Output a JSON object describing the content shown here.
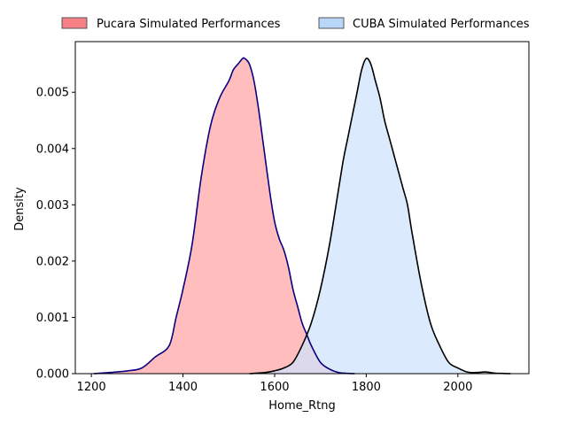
{
  "chart_data": {
    "type": "area",
    "title": "",
    "xlabel": "Home_Rtng",
    "ylabel": "Density",
    "xlim": [
      1165,
      2155
    ],
    "ylim": [
      0,
      0.0059
    ],
    "xticks": [
      1200,
      1400,
      1600,
      1800,
      2000
    ],
    "xtick_labels": [
      "1200",
      "1400",
      "1600",
      "1800",
      "2000"
    ],
    "yticks": [
      0,
      0.001,
      0.002,
      0.003,
      0.004,
      0.005
    ],
    "ytick_labels": [
      "0.000",
      "0.001",
      "0.002",
      "0.003",
      "0.004",
      "0.005"
    ],
    "grid": false,
    "legend_position": "top",
    "series": [
      {
        "name": "Pucara Simulated Performances",
        "fill": "#ff9a9a",
        "legend_fill": "#f77f86",
        "line": "#0c0082",
        "x": [
          1205,
          1240,
          1280,
          1310,
          1340,
          1370,
          1385,
          1400,
          1420,
          1440,
          1460,
          1480,
          1500,
          1510,
          1520,
          1530,
          1535,
          1545,
          1555,
          1565,
          1575,
          1590,
          1600,
          1610,
          1620,
          1630,
          1640,
          1650,
          1660,
          1670,
          1680,
          1700,
          1720,
          1740,
          1760,
          1775
        ],
        "y": [
          0.0,
          2e-05,
          5e-05,
          0.0001,
          0.0003,
          0.0005,
          0.001,
          0.0015,
          0.0023,
          0.0035,
          0.0044,
          0.0049,
          0.0052,
          0.0054,
          0.0055,
          0.0056,
          0.0056,
          0.0055,
          0.0052,
          0.0047,
          0.0041,
          0.0032,
          0.0027,
          0.0024,
          0.0022,
          0.0019,
          0.0015,
          0.0012,
          0.0009,
          0.0007,
          0.0005,
          0.0002,
          8e-05,
          2e-05,
          5e-06,
          0.0
        ]
      },
      {
        "name": "CUBA Simulated Performances",
        "fill": "#cfe3fb",
        "legend_fill": "#b8d6f8",
        "line": "#000000",
        "x": [
          1545,
          1580,
          1600,
          1620,
          1640,
          1660,
          1680,
          1700,
          1720,
          1740,
          1750,
          1760,
          1770,
          1780,
          1790,
          1800,
          1810,
          1820,
          1830,
          1840,
          1850,
          1860,
          1870,
          1880,
          1890,
          1900,
          1920,
          1940,
          1960,
          1980,
          2000,
          2020,
          2040,
          2060,
          2080,
          2100,
          2115
        ],
        "y": [
          0.0,
          2e-05,
          5e-05,
          0.0001,
          0.0002,
          0.0005,
          0.0009,
          0.0015,
          0.0023,
          0.0033,
          0.0038,
          0.0042,
          0.0046,
          0.005,
          0.0054,
          0.0056,
          0.0055,
          0.0052,
          0.0049,
          0.0045,
          0.0042,
          0.0039,
          0.0036,
          0.0033,
          0.003,
          0.0025,
          0.0016,
          0.0009,
          0.0005,
          0.0002,
          0.0001,
          3e-05,
          2e-05,
          3e-05,
          1e-05,
          3e-06,
          0.0
        ]
      }
    ]
  }
}
